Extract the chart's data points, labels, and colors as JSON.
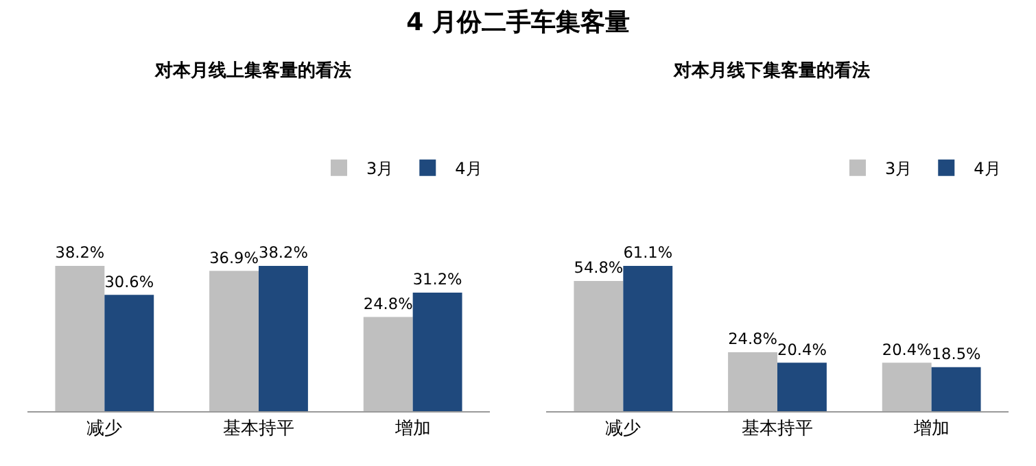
{
  "chart_data": [
    {
      "type": "bar",
      "title": "4 月份二手车集客量",
      "subtitle": "对本月线上集客量的看法",
      "categories": [
        "减少",
        "基本持平",
        "增加"
      ],
      "legend": "top right",
      "grid": false,
      "series": [
        {
          "name": "3月",
          "color": "#bfbfbf",
          "values": [
            38.2,
            36.9,
            24.8
          ],
          "value_labels": [
            "38.2%",
            "36.9%",
            "24.8%"
          ]
        },
        {
          "name": "4月",
          "color": "#1f497d",
          "values": [
            30.6,
            38.2,
            31.2
          ],
          "value_labels": [
            "30.6%",
            "38.2%",
            "31.2%"
          ]
        }
      ]
    },
    {
      "type": "bar",
      "title": "对本月线下集客量的看法",
      "categories": [
        "减少",
        "基本持平",
        "增加"
      ],
      "legend": "top right",
      "grid": false,
      "series": [
        {
          "name": "3月",
          "color": "#bfbfbf",
          "values": [
            54.8,
            24.8,
            20.4
          ],
          "value_labels": [
            "54.8%",
            "24.8%",
            "20.4%"
          ]
        },
        {
          "name": "4月",
          "color": "#1f497d",
          "values": [
            61.1,
            20.4,
            18.5
          ],
          "value_labels": [
            "61.1%",
            "20.4%",
            "18.5%"
          ]
        }
      ]
    }
  ]
}
